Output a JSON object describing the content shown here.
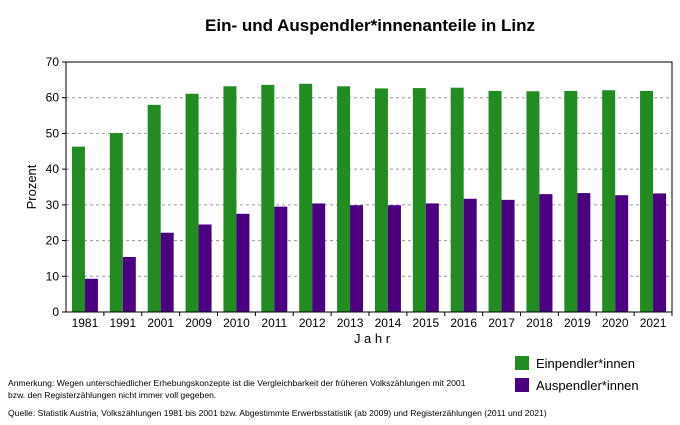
{
  "chart_data": {
    "type": "bar",
    "title": "Ein- und Auspendler*innenanteile in Linz",
    "xlabel": "J a h r",
    "ylabel": "Prozent",
    "ylim": [
      0,
      70
    ],
    "yticks": [
      "0",
      "10",
      "20",
      "30",
      "40",
      "50",
      "60",
      "70"
    ],
    "grid": true,
    "legend_position": "bottom-right",
    "categories": [
      "1981",
      "1991",
      "2001",
      "2009",
      "2010",
      "2011",
      "2012",
      "2013",
      "2014",
      "2015",
      "2016",
      "2017",
      "2018",
      "2019",
      "2020",
      "2021"
    ],
    "series": [
      {
        "name": "Einpendler*innen",
        "color": "#228b22",
        "values": [
          46.3,
          50.1,
          58.0,
          61.1,
          63.2,
          63.6,
          63.9,
          63.2,
          62.6,
          62.7,
          62.8,
          61.9,
          61.8,
          61.9,
          62.1,
          61.9
        ]
      },
      {
        "name": "Auspendler*innen",
        "color": "#4b0082",
        "values": [
          9.3,
          15.4,
          22.2,
          24.5,
          27.5,
          29.5,
          30.4,
          29.9,
          29.9,
          30.4,
          31.7,
          31.4,
          33.0,
          33.3,
          32.7,
          33.2
        ]
      }
    ]
  },
  "footer": {
    "note": "Anmerkung: Wegen unterschiedlicher Erhebungskonzepte ist die Vergleichbarkeit der früheren Volkszählungen mit 2001 bzw. den Registerzählungen nicht immer voll gegeben.",
    "source": "Quelle: Statistik Austria, Volkszählungen 1981 bis 2001 bzw. Abgestimmte Erwerbsstatistik (ab 2009) und Registerzählungen (2011 und 2021)"
  }
}
